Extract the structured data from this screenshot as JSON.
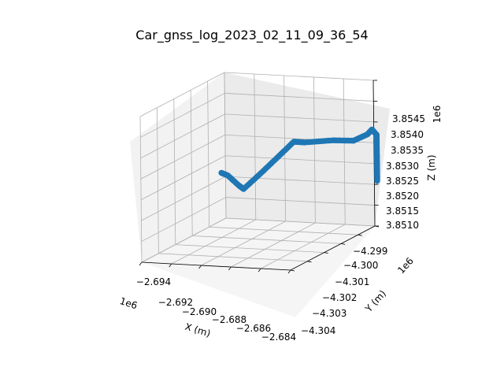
{
  "chart_data": {
    "type": "scatter",
    "title": "Car_gnss_log_2023_02_11_09_36_54",
    "xlabel": "X (m)",
    "ylabel": "Y (m)",
    "zlabel": "Z (m)",
    "x_offset": "1e6",
    "y_offset": "1e6",
    "z_offset": "1e6",
    "x_ticks": [
      "−2.694",
      "−2.692",
      "−2.690",
      "−2.688",
      "−2.686",
      "−2.684"
    ],
    "y_ticks": [
      "−4.304",
      "−4.303",
      "−4.302",
      "−4.301",
      "−4.300",
      "−4.299"
    ],
    "z_ticks": [
      "3.8510",
      "3.8515",
      "3.8520",
      "3.8525",
      "3.8530",
      "3.8535",
      "3.8540",
      "3.8545"
    ],
    "series": [
      {
        "color": "#1f77b4",
        "path": [
          {
            "x": -2.692,
            "y": -4.301,
            "z": 3.85255
          },
          {
            "x": -2.6918,
            "y": -4.3008,
            "z": 3.85245
          },
          {
            "x": -2.6914,
            "y": -4.3005,
            "z": 3.85215
          },
          {
            "x": -2.6912,
            "y": -4.3004,
            "z": 3.85205
          },
          {
            "x": -2.6906,
            "y": -4.2998,
            "z": 3.85235
          },
          {
            "x": -2.69,
            "y": -4.2993,
            "z": 3.85265
          },
          {
            "x": -2.6895,
            "y": -4.2989,
            "z": 3.8529
          },
          {
            "x": -2.689,
            "y": -4.2987,
            "z": 3.85285
          },
          {
            "x": -2.688,
            "y": -4.2979,
            "z": 3.85275
          },
          {
            "x": -2.6872,
            "y": -4.2974,
            "z": 3.85265
          },
          {
            "x": -2.6866,
            "y": -4.2971,
            "z": 3.85275
          },
          {
            "x": -2.6864,
            "y": -4.297,
            "z": 3.85285
          },
          {
            "x": -2.6862,
            "y": -4.2969,
            "z": 3.8527
          },
          {
            "x": -2.6862,
            "y": -4.2969,
            "z": 3.8522
          },
          {
            "x": -2.6862,
            "y": -4.2969,
            "z": 3.85185
          },
          {
            "x": -2.6862,
            "y": -4.2969,
            "z": 3.8516
          }
        ]
      }
    ]
  }
}
